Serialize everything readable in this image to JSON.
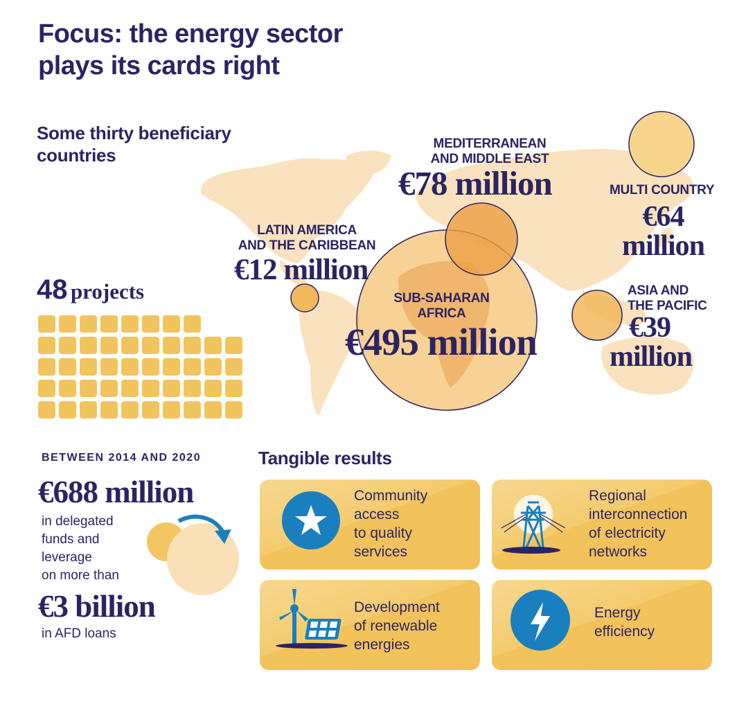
{
  "title": {
    "line1": "Focus: the energy sector",
    "line2": "plays its cards right"
  },
  "subtitle": {
    "line1": "Some thirty beneficiary",
    "line2": "countries"
  },
  "regions": {
    "mediterranean": {
      "label1": "MEDITERRANEAN",
      "label2": "AND MIDDLE EAST",
      "amount": "€78 million"
    },
    "multi_country": {
      "label1": "MULTI COUNTRY",
      "amount1": "€64",
      "amount2": "million"
    },
    "latin_america": {
      "label1": "LATIN AMERICA",
      "label2": "AND THE CARIBBEAN",
      "amount": "€12 million"
    },
    "sub_saharan": {
      "label1": "SUB-SAHARAN",
      "label2": "AFRICA",
      "amount": "€495 million"
    },
    "asia_pacific": {
      "label1": "ASIA AND",
      "label2": "THE PACIFIC",
      "amount1": "€39",
      "amount2": "million"
    }
  },
  "projects": {
    "count": "48",
    "label": "projects"
  },
  "funding": {
    "period": "BETWEEN 2014 AND 2020",
    "amount": "€688 million",
    "line1": "in delegated",
    "line2": "funds and",
    "line3": "leverage",
    "line4": "on more than",
    "loans_amount": "€3 billion",
    "loans_label": "in AFD loans"
  },
  "results": {
    "heading": "Tangible results",
    "cards": [
      {
        "icon": "star-icon",
        "lines": [
          "Community",
          "access",
          "to quality",
          "services"
        ]
      },
      {
        "icon": "pylon-icon",
        "lines": [
          "Regional",
          "interconnection",
          "of electricity",
          "networks"
        ]
      },
      {
        "icon": "wind-solar-icon",
        "lines": [
          "Development",
          "of renewable",
          "energies"
        ]
      },
      {
        "icon": "lightning-icon",
        "lines": [
          "Energy",
          "efficiency"
        ]
      }
    ]
  },
  "colors": {
    "navy": "#2b2463",
    "gold": "#f2c45e",
    "peach": "#f9e2bd",
    "blue": "#1a7fbf",
    "orange": "#ee9f45"
  }
}
